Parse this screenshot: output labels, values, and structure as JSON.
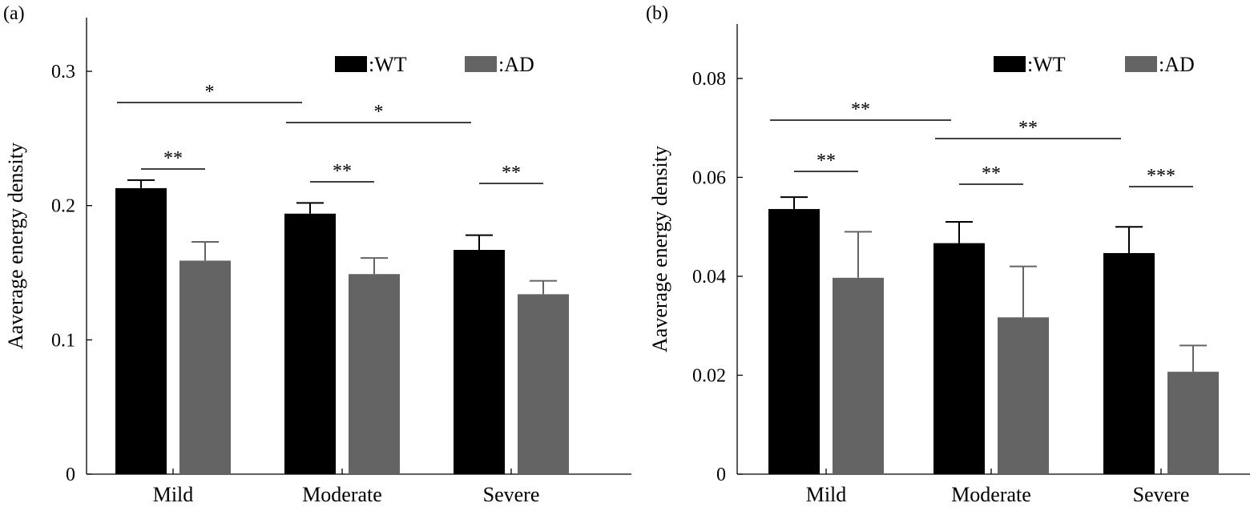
{
  "chart_data": [
    {
      "type": "bar",
      "panel_label": "(a)",
      "categories": [
        "Mild",
        "Moderate",
        "Severe"
      ],
      "ylabel": "Aaverage energy density",
      "xlabel": "",
      "ylim": [
        0,
        0.34
      ],
      "yticks": [
        0,
        0.1,
        0.2,
        0.3
      ],
      "ytick_labels": [
        "0",
        "0.1",
        "0.2",
        "0.3"
      ],
      "legend_position": "top-right",
      "series": [
        {
          "name": ":WT",
          "color": "#000000",
          "values": [
            0.213,
            0.194,
            0.167
          ],
          "errors": [
            0.006,
            0.008,
            0.011
          ]
        },
        {
          "name": ":AD",
          "color": "#646464",
          "values": [
            0.159,
            0.149,
            0.134
          ],
          "errors": [
            0.014,
            0.012,
            0.01
          ]
        }
      ],
      "significance": [
        {
          "label": "**",
          "type": "within",
          "group": 0
        },
        {
          "label": "**",
          "type": "within",
          "group": 1
        },
        {
          "label": "**",
          "type": "within",
          "group": 2
        },
        {
          "label": "*",
          "type": "between",
          "from": 0,
          "to": 1
        },
        {
          "label": "*",
          "type": "between",
          "from": 1,
          "to": 2
        }
      ]
    },
    {
      "type": "bar",
      "panel_label": "(b)",
      "categories": [
        "Mild",
        "Moderate",
        "Severe"
      ],
      "ylabel": "Aaverage energy density",
      "xlabel": "",
      "ylim": [
        0,
        0.091
      ],
      "yticks": [
        0,
        0.02,
        0.04,
        0.06,
        0.08
      ],
      "ytick_labels": [
        "0",
        "0.02",
        "0.04",
        "0.06",
        "0.08"
      ],
      "legend_position": "top-right",
      "series": [
        {
          "name": ":WT",
          "color": "#000000",
          "values": [
            0.0536,
            0.0467,
            0.0447
          ],
          "errors": [
            0.0024,
            0.0043,
            0.0053
          ]
        },
        {
          "name": ":AD",
          "color": "#646464",
          "values": [
            0.0397,
            0.0317,
            0.0207
          ],
          "errors": [
            0.0093,
            0.0103,
            0.0053
          ]
        }
      ],
      "significance": [
        {
          "label": "**",
          "type": "within",
          "group": 0
        },
        {
          "label": "**",
          "type": "within",
          "group": 1
        },
        {
          "label": "***",
          "type": "within",
          "group": 2
        },
        {
          "label": "**",
          "type": "between",
          "from": 0,
          "to": 1
        },
        {
          "label": "**",
          "type": "between",
          "from": 1,
          "to": 2
        }
      ]
    }
  ]
}
